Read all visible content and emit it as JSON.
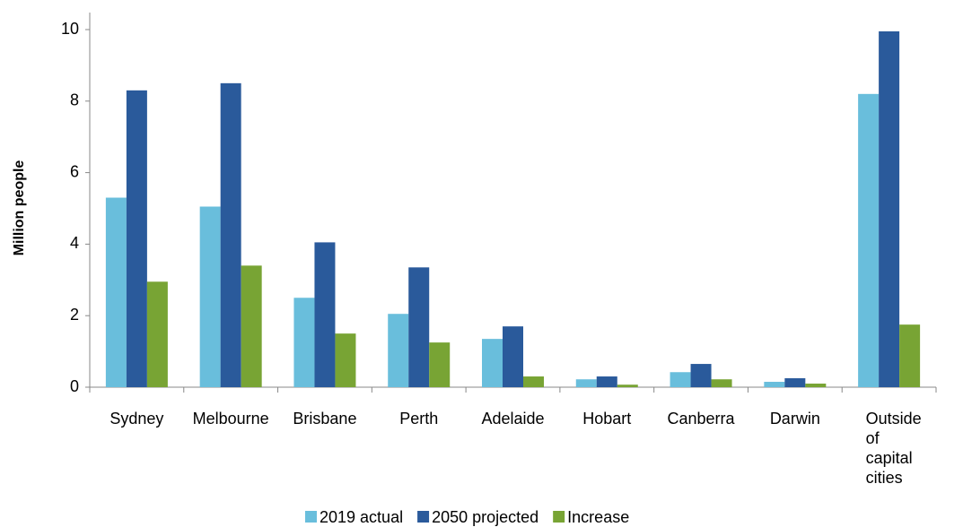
{
  "chart_data": {
    "type": "bar",
    "y_label": "Million  people",
    "categories": [
      "Sydney",
      "Melbourne",
      "Brisbane",
      "Perth",
      "Adelaide",
      "Hobart",
      "Canberra",
      "Darwin",
      "Outside of capital cities"
    ],
    "series": [
      {
        "name": "2019 actual",
        "color": "#69bedc",
        "values": [
          5.3,
          5.05,
          2.5,
          2.05,
          1.35,
          0.22,
          0.42,
          0.15,
          8.2
        ]
      },
      {
        "name": "2050 projected",
        "color": "#2a5a9b",
        "values": [
          8.3,
          8.5,
          4.05,
          3.35,
          1.7,
          0.3,
          0.65,
          0.25,
          9.95
        ]
      },
      {
        "name": "Increase",
        "color": "#78a434",
        "values": [
          2.95,
          3.4,
          1.5,
          1.25,
          0.3,
          0.07,
          0.22,
          0.1,
          1.75
        ]
      }
    ],
    "ylim": [
      0,
      10
    ],
    "yticks": [
      0,
      2,
      4,
      6,
      8,
      10
    ]
  }
}
